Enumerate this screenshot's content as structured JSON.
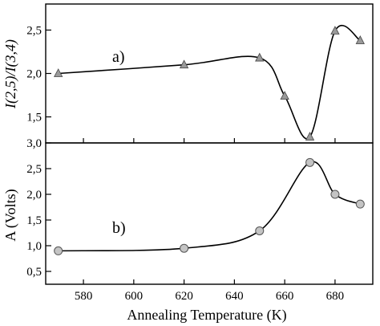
{
  "chart_data": [
    {
      "type": "line",
      "panel_label": "a)",
      "ylabel": "I(2,5)/I(3,4)",
      "ylim": [
        1.2,
        2.8
      ],
      "yticks": [
        1.5,
        2.0,
        2.5
      ],
      "ytick_labels": [
        "1,5",
        "2,0",
        "2,5"
      ],
      "xlim": [
        565,
        695
      ],
      "series": [
        {
          "marker": "triangle",
          "x": [
            570,
            620,
            650,
            660,
            670,
            680,
            690
          ],
          "values": [
            2.0,
            2.1,
            2.18,
            1.74,
            1.27,
            2.49,
            2.38
          ]
        }
      ]
    },
    {
      "type": "line",
      "panel_label": "b)",
      "ylabel": "A (Volts)",
      "xlabel": "Annealing Temperature (K)",
      "ylim": [
        0.25,
        3.0
      ],
      "yticks": [
        0.5,
        1.0,
        1.5,
        2.0,
        2.5,
        3.0
      ],
      "ytick_labels": [
        "0,5",
        "1,0",
        "1,5",
        "2,0",
        "2,5",
        "3,0"
      ],
      "xlim": [
        565,
        695
      ],
      "xticks": [
        580,
        600,
        620,
        640,
        660,
        680
      ],
      "xtick_labels": [
        "580",
        "600",
        "620",
        "640",
        "660",
        "680"
      ],
      "series": [
        {
          "marker": "circle",
          "x": [
            570,
            620,
            650,
            670,
            680,
            690
          ],
          "values": [
            0.9,
            0.95,
            1.29,
            2.62,
            2.0,
            1.81
          ]
        }
      ]
    }
  ]
}
